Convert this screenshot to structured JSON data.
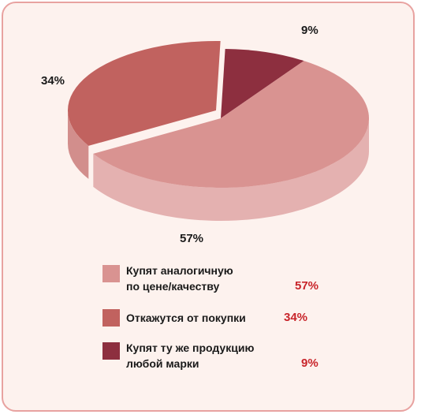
{
  "chart_data": {
    "type": "pie",
    "slices": [
      {
        "label_line1": "Купят аналогичную",
        "label_line2": "по цене/качеству",
        "value": 57,
        "value_label": "57%",
        "color": "#d99391"
      },
      {
        "label_line1": "Откажутся от покупки",
        "label_line2": "",
        "value": 34,
        "value_label": "34%",
        "color": "#c1625f"
      },
      {
        "label_line1": "Купят ту же продукцию",
        "label_line2": "любой марки",
        "value": 9,
        "value_label": "9%",
        "color": "#8d2f3f"
      }
    ],
    "slice_labels": [
      "57%",
      "34%",
      "9%"
    ],
    "legend_placement": "bottom",
    "style": "3d-pie"
  },
  "colors": {
    "background": "#fdf2ee",
    "frame_border": "#e8a2a0",
    "value_accent": "#c8242a"
  }
}
